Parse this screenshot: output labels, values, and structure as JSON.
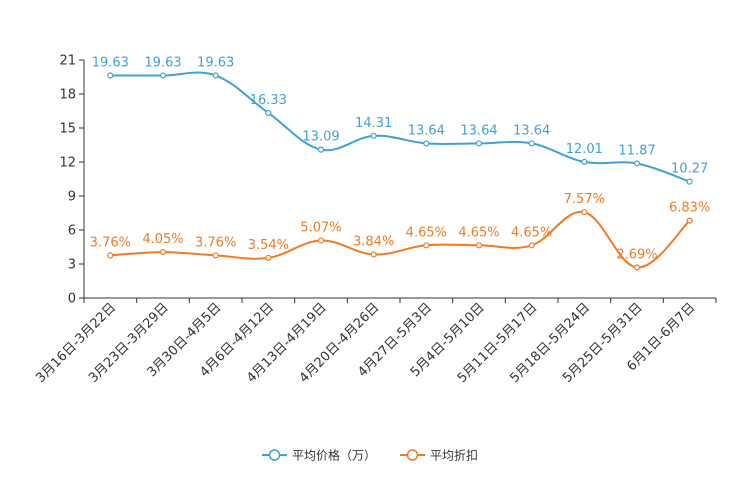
{
  "chart_data": {
    "type": "line",
    "categories": [
      "3月16日-3月22日",
      "3月23日-3月29日",
      "3月30日-4月5日",
      "4月6日-4月12日",
      "4月13日-4月19日",
      "4月20日-4月26日",
      "4月27日-5月3日",
      "5月4日-5月10日",
      "5月11日-5月17日",
      "5月18日-5月24日",
      "5月25日-5月31日",
      "6月1日-6月7日"
    ],
    "series": [
      {
        "name": "平均价格（万）",
        "color": "#3fa2d4",
        "values": [
          19.63,
          19.63,
          19.63,
          16.33,
          13.09,
          14.31,
          13.64,
          13.64,
          13.64,
          12.01,
          11.87,
          10.27
        ],
        "labels": [
          "19.63",
          "19.63",
          "19.63",
          "16.33",
          "13.09",
          "14.31",
          "13.64",
          "13.64",
          "13.64",
          "12.01",
          "11.87",
          "10.27"
        ]
      },
      {
        "name": "平均折扣",
        "color": "#f07b23",
        "values": [
          3.76,
          4.05,
          3.76,
          3.54,
          5.07,
          3.84,
          4.65,
          4.65,
          4.65,
          7.57,
          2.69,
          6.83
        ],
        "labels": [
          "3.76%",
          "4.05%",
          "3.76%",
          "3.54%",
          "5.07%",
          "3.84%",
          "4.65%",
          "4.65%",
          "4.65%",
          "7.57%",
          "2.69%",
          "6.83%"
        ]
      }
    ],
    "yticks": [
      "0",
      "3",
      "6",
      "9",
      "12",
      "15",
      "18",
      "21"
    ],
    "ylim": [
      0,
      21
    ],
    "legend_position": "bottom-center"
  }
}
